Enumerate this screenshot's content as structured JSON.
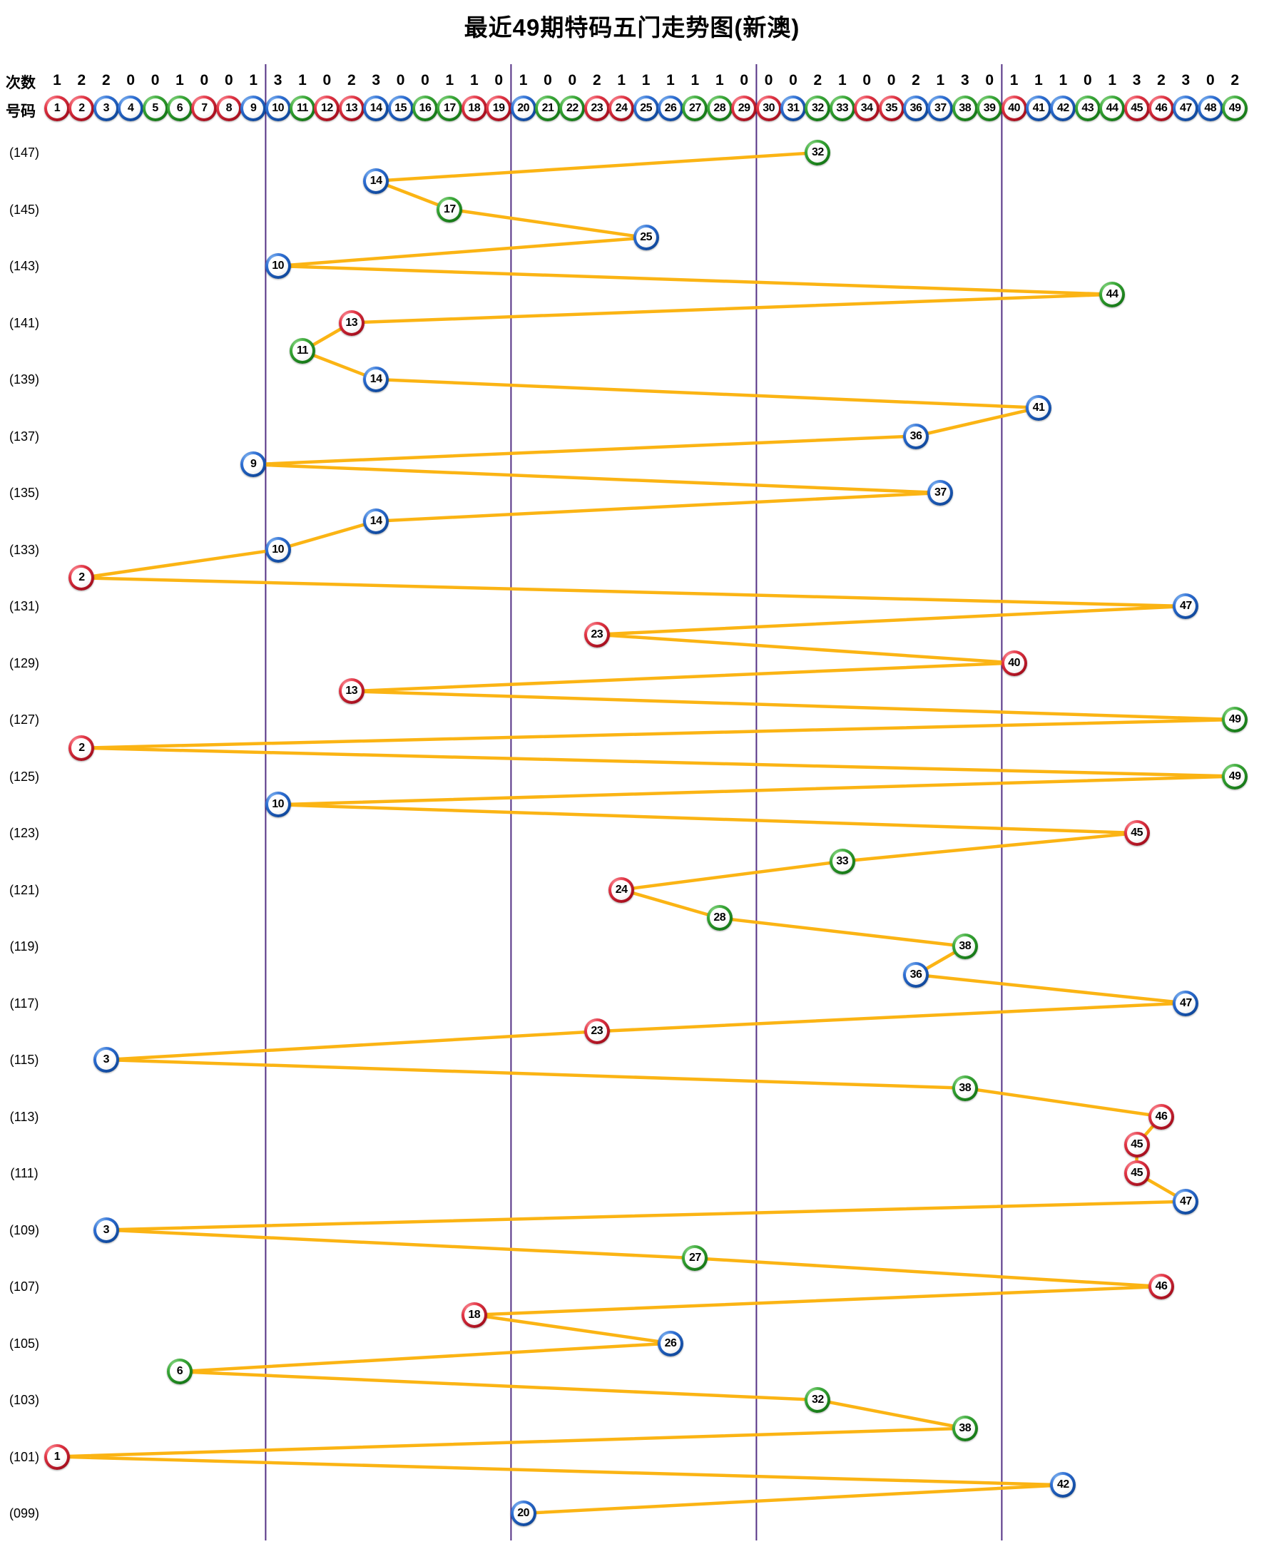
{
  "title": "最近49期特码五门走势图(新澳)",
  "header": {
    "row1_label": "次数",
    "row2_label": "号码",
    "counts": [
      1,
      2,
      2,
      0,
      0,
      1,
      0,
      0,
      1,
      3,
      1,
      0,
      2,
      3,
      0,
      0,
      1,
      1,
      0,
      1,
      0,
      0,
      2,
      1,
      1,
      1,
      1,
      1,
      0,
      0,
      0,
      2,
      1,
      0,
      0,
      2,
      1,
      3,
      0,
      1,
      1,
      1,
      0,
      1,
      3,
      2,
      3,
      0,
      2
    ],
    "ball_numbers": [
      1,
      2,
      3,
      4,
      5,
      6,
      7,
      8,
      9,
      10,
      11,
      12,
      13,
      14,
      15,
      16,
      17,
      18,
      19,
      20,
      21,
      22,
      23,
      24,
      25,
      26,
      27,
      28,
      29,
      30,
      31,
      32,
      33,
      34,
      35,
      36,
      37,
      38,
      39,
      40,
      41,
      42,
      43,
      44,
      45,
      46,
      47,
      48,
      49
    ]
  },
  "chart_data": {
    "type": "line",
    "title": "最近49期特码五门走势图(新澳)",
    "x_axis": "特码号码 1-49 (五门分组: 1-9 | 10-19 | 20-29 | 30-39 | 40-49)",
    "y_axis": "期号 147 至 099 (自上而下)",
    "group_boundaries_after": [
      9,
      19,
      29,
      39
    ],
    "period_labels": [
      "(147)",
      "(145)",
      "(143)",
      "(141)",
      "(139)",
      "(137)",
      "(135)",
      "(133)",
      "(131)",
      "(129)",
      "(127)",
      "(125)",
      "(123)",
      "(121)",
      "(119)",
      "(117)",
      "(115)",
      "(113)",
      "(111)",
      "(109)",
      "(107)",
      "(105)",
      "(103)",
      "(101)",
      "(099)"
    ],
    "draws": [
      {
        "p": 147,
        "n": 32
      },
      {
        "p": 146,
        "n": 14
      },
      {
        "p": 145,
        "n": 17
      },
      {
        "p": 144,
        "n": 25
      },
      {
        "p": 143,
        "n": 10
      },
      {
        "p": 142,
        "n": 44
      },
      {
        "p": 141,
        "n": 13
      },
      {
        "p": 140,
        "n": 11
      },
      {
        "p": 139,
        "n": 14
      },
      {
        "p": 138,
        "n": 41
      },
      {
        "p": 137,
        "n": 36
      },
      {
        "p": 136,
        "n": 9
      },
      {
        "p": 135,
        "n": 37
      },
      {
        "p": 134,
        "n": 14
      },
      {
        "p": 133,
        "n": 10
      },
      {
        "p": 132,
        "n": 2
      },
      {
        "p": 131,
        "n": 47
      },
      {
        "p": 130,
        "n": 23
      },
      {
        "p": 129,
        "n": 40
      },
      {
        "p": 128,
        "n": 13
      },
      {
        "p": 127,
        "n": 49
      },
      {
        "p": 126,
        "n": 2
      },
      {
        "p": 125,
        "n": 49
      },
      {
        "p": 124,
        "n": 10
      },
      {
        "p": 123,
        "n": 45
      },
      {
        "p": 122,
        "n": 33
      },
      {
        "p": 121,
        "n": 24
      },
      {
        "p": 120,
        "n": 28
      },
      {
        "p": 119,
        "n": 38
      },
      {
        "p": 118,
        "n": 36
      },
      {
        "p": 117,
        "n": 47
      },
      {
        "p": 116,
        "n": 23
      },
      {
        "p": 115,
        "n": 3
      },
      {
        "p": 114,
        "n": 38
      },
      {
        "p": 113,
        "n": 46
      },
      {
        "p": 112,
        "n": 45
      },
      {
        "p": 111,
        "n": 45
      },
      {
        "p": 110,
        "n": 47
      },
      {
        "p": 109,
        "n": 3
      },
      {
        "p": 108,
        "n": 27
      },
      {
        "p": 107,
        "n": 46
      },
      {
        "p": 106,
        "n": 18
      },
      {
        "p": 105,
        "n": 26
      },
      {
        "p": 104,
        "n": 6
      },
      {
        "p": 103,
        "n": 32
      },
      {
        "p": 102,
        "n": 38
      },
      {
        "p": 101,
        "n": 1
      },
      {
        "p": 100,
        "n": 42
      },
      {
        "p": 99,
        "n": 20
      }
    ],
    "ball_colors": {
      "red": [
        1,
        2,
        7,
        8,
        12,
        13,
        18,
        19,
        23,
        24,
        29,
        30,
        34,
        35,
        40,
        45,
        46
      ],
      "blue": [
        3,
        4,
        9,
        10,
        14,
        15,
        20,
        25,
        26,
        31,
        36,
        37,
        41,
        42,
        47,
        48
      ],
      "green": [
        5,
        6,
        11,
        16,
        17,
        21,
        22,
        27,
        28,
        32,
        33,
        38,
        39,
        43,
        44,
        49
      ]
    },
    "colors": {
      "line": "#FBB414",
      "divider": "#553285",
      "red_ball": "#D91F2F",
      "blue_ball": "#1F62C9",
      "green_ball": "#2FA12F",
      "text": "#000000",
      "background": "#FFFFFF"
    },
    "legend_position": "none",
    "grid": "vertical group dividers only"
  }
}
